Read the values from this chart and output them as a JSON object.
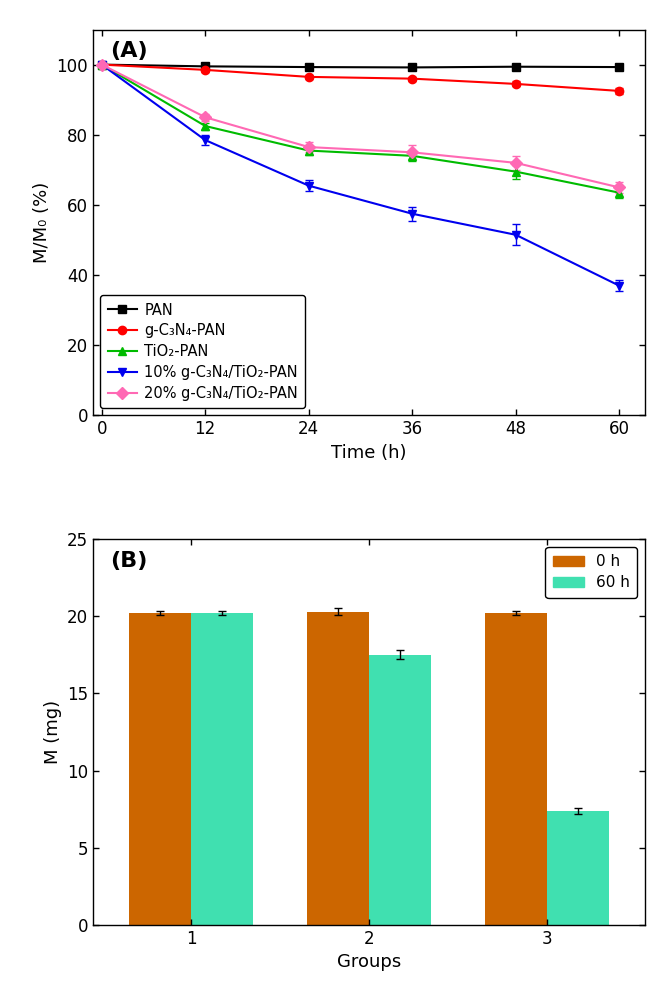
{
  "panel_A": {
    "title": "(A)",
    "xlabel": "Time (h)",
    "ylabel": "M/M₀ (%)",
    "xlim": [
      -1,
      63
    ],
    "ylim": [
      0,
      110
    ],
    "xticks": [
      0,
      12,
      24,
      36,
      48,
      60
    ],
    "yticks": [
      0,
      20,
      40,
      60,
      80,
      100
    ],
    "series": [
      {
        "label": "PAN",
        "color": "#000000",
        "marker": "s",
        "x": [
          0,
          12,
          24,
          36,
          48,
          60
        ],
        "y": [
          100,
          99.5,
          99.3,
          99.2,
          99.4,
          99.3
        ],
        "yerr": [
          0.4,
          0.4,
          0.4,
          0.4,
          0.4,
          0.4
        ]
      },
      {
        "label": "g-C₃N₄-PAN",
        "color": "#ff0000",
        "marker": "o",
        "x": [
          0,
          12,
          24,
          36,
          48,
          60
        ],
        "y": [
          100,
          98.5,
          96.5,
          96.0,
          94.5,
          92.5
        ],
        "yerr": [
          0.4,
          0.5,
          0.6,
          0.6,
          0.7,
          0.8
        ]
      },
      {
        "label": "TiO₂-PAN",
        "color": "#00bb00",
        "marker": "^",
        "x": [
          0,
          12,
          24,
          36,
          48,
          60
        ],
        "y": [
          100,
          82.5,
          75.5,
          74.0,
          69.5,
          63.5
        ],
        "yerr": [
          0.4,
          1.0,
          1.2,
          1.5,
          2.0,
          1.5
        ]
      },
      {
        "label": "10% g-C₃N₄/TiO₂-PAN",
        "color": "#0000ee",
        "marker": "v",
        "x": [
          0,
          12,
          24,
          36,
          48,
          60
        ],
        "y": [
          100,
          78.5,
          65.5,
          57.5,
          51.5,
          37.0
        ],
        "yerr": [
          0.4,
          1.5,
          1.5,
          2.0,
          3.0,
          1.5
        ]
      },
      {
        "label": "20% g-C₃N₄/TiO₂-PAN",
        "color": "#ff69b4",
        "marker": "D",
        "x": [
          0,
          12,
          24,
          36,
          48,
          60
        ],
        "y": [
          100,
          85.0,
          76.5,
          75.0,
          72.0,
          65.0
        ],
        "yerr": [
          0.4,
          1.0,
          1.5,
          2.0,
          2.0,
          1.5
        ]
      }
    ]
  },
  "panel_B": {
    "title": "(B)",
    "xlabel": "Groups",
    "ylabel": "M (mg)",
    "ylim": [
      0,
      25
    ],
    "yticks": [
      0,
      5,
      10,
      15,
      20,
      25
    ],
    "xtick_positions": [
      1,
      2,
      3
    ],
    "xtick_labels": [
      "1",
      "2",
      "3"
    ],
    "bar_width": 0.35,
    "groups": [
      1,
      2,
      3
    ],
    "bar_0h": {
      "label": "0 h",
      "color": "#cc6600",
      "values": [
        20.2,
        20.3,
        20.2
      ],
      "yerr": [
        0.15,
        0.2,
        0.15
      ]
    },
    "bar_60h": {
      "label": "60 h",
      "color": "#40e0b0",
      "values": [
        20.2,
        17.5,
        7.4
      ],
      "yerr": [
        0.15,
        0.3,
        0.2
      ]
    }
  },
  "fig_width": 6.65,
  "fig_height": 9.84,
  "dpi": 100
}
